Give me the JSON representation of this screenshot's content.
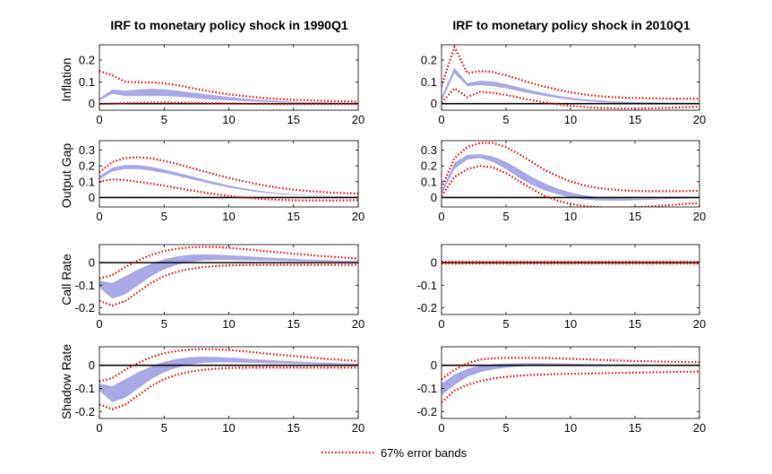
{
  "chart_data": {
    "type": "line",
    "figure": "Impulse responses to monetary policy shock",
    "legend": {
      "label": "67% error bands",
      "color": "#e00000",
      "style": "dotted",
      "placement": "bottom-center"
    },
    "band_color": "#a8a8e6",
    "columns": [
      {
        "title": "IRF to monetary policy shock in 1990Q1"
      },
      {
        "title": "IRF to monetary policy shock in 2010Q1"
      }
    ],
    "rows": [
      {
        "ylabel": "Inflation",
        "ylim": [
          -0.03,
          0.27
        ],
        "yticks": [
          0,
          0.1,
          0.2
        ],
        "ytick_labels": [
          "0",
          "0.1",
          "0.2"
        ]
      },
      {
        "ylabel": "Output Gap",
        "ylim": [
          -0.06,
          0.36
        ],
        "yticks": [
          0,
          0.1,
          0.2,
          0.3
        ],
        "ytick_labels": [
          "0",
          "0.1",
          "0.2",
          "0.3"
        ]
      },
      {
        "ylabel": "Call Rate",
        "ylim": [
          -0.23,
          0.08
        ],
        "yticks": [
          -0.2,
          -0.1,
          0
        ],
        "ytick_labels": [
          "-0.2",
          "-0.1",
          "0"
        ]
      },
      {
        "ylabel": "Shadow Rate",
        "ylim": [
          -0.23,
          0.08
        ],
        "yticks": [
          -0.2,
          -0.1,
          0
        ],
        "ytick_labels": [
          "-0.2",
          "-0.1",
          "0"
        ]
      }
    ],
    "xlim": [
      0,
      20
    ],
    "xticks": [
      0,
      5,
      10,
      15,
      20
    ],
    "xtick_labels": [
      "0",
      "5",
      "10",
      "15",
      "20"
    ],
    "x": [
      0,
      1,
      2,
      3,
      4,
      5,
      6,
      7,
      8,
      9,
      10,
      11,
      12,
      13,
      14,
      15,
      16,
      17,
      18,
      19,
      20
    ],
    "panels": [
      {
        "row": 0,
        "col": 0,
        "band_lower": [
          0.015,
          0.045,
          0.035,
          0.035,
          0.035,
          0.035,
          0.032,
          0.027,
          0.022,
          0.018,
          0.015,
          0.012,
          0.01,
          0.008,
          0.006,
          0.005,
          0.004,
          0.003,
          0.003,
          0.002,
          0.002
        ],
        "band_upper": [
          0.025,
          0.065,
          0.06,
          0.065,
          0.068,
          0.066,
          0.06,
          0.052,
          0.045,
          0.038,
          0.031,
          0.025,
          0.02,
          0.016,
          0.012,
          0.009,
          0.007,
          0.006,
          0.005,
          0.004,
          0.004
        ],
        "err_lower": [
          -0.002,
          0.0,
          0.002,
          0.004,
          0.005,
          0.005,
          0.005,
          0.004,
          0.003,
          0.002,
          0.001,
          0.0,
          -0.001,
          -0.001,
          -0.002,
          -0.002,
          -0.002,
          -0.002,
          -0.002,
          -0.002,
          -0.002
        ],
        "err_upper": [
          0.15,
          0.13,
          0.1,
          0.098,
          0.097,
          0.094,
          0.085,
          0.073,
          0.062,
          0.052,
          0.043,
          0.036,
          0.03,
          0.025,
          0.021,
          0.018,
          0.016,
          0.014,
          0.012,
          0.011,
          0.01
        ]
      },
      {
        "row": 0,
        "col": 1,
        "band_lower": [
          0.01,
          0.14,
          0.08,
          0.085,
          0.08,
          0.07,
          0.058,
          0.046,
          0.035,
          0.026,
          0.018,
          0.012,
          0.008,
          0.005,
          0.003,
          0.002,
          0.001,
          0.001,
          0.001,
          0.001,
          0.001
        ],
        "band_upper": [
          0.03,
          0.165,
          0.095,
          0.105,
          0.102,
          0.09,
          0.075,
          0.061,
          0.048,
          0.037,
          0.028,
          0.021,
          0.016,
          0.012,
          0.009,
          0.007,
          0.006,
          0.005,
          0.004,
          0.004,
          0.003
        ],
        "err_lower": [
          0.005,
          0.07,
          0.03,
          0.055,
          0.05,
          0.04,
          0.028,
          0.016,
          0.006,
          -0.003,
          -0.01,
          -0.015,
          -0.019,
          -0.021,
          -0.022,
          -0.022,
          -0.021,
          -0.02,
          -0.018,
          -0.016,
          -0.014
        ],
        "err_upper": [
          0.08,
          0.26,
          0.14,
          0.15,
          0.145,
          0.13,
          0.112,
          0.094,
          0.078,
          0.064,
          0.052,
          0.043,
          0.036,
          0.031,
          0.028,
          0.026,
          0.025,
          0.024,
          0.023,
          0.023,
          0.023
        ]
      },
      {
        "row": 1,
        "col": 0,
        "band_lower": [
          0.115,
          0.165,
          0.18,
          0.18,
          0.17,
          0.155,
          0.137,
          0.118,
          0.098,
          0.08,
          0.063,
          0.049,
          0.037,
          0.028,
          0.021,
          0.016,
          0.012,
          0.009,
          0.007,
          0.006,
          0.005
        ],
        "band_upper": [
          0.135,
          0.19,
          0.205,
          0.205,
          0.195,
          0.178,
          0.158,
          0.137,
          0.116,
          0.096,
          0.077,
          0.061,
          0.047,
          0.036,
          0.027,
          0.02,
          0.015,
          0.011,
          0.009,
          0.007,
          0.006
        ],
        "err_lower": [
          0.1,
          0.115,
          0.11,
          0.1,
          0.088,
          0.075,
          0.06,
          0.046,
          0.033,
          0.021,
          0.01,
          0.001,
          -0.006,
          -0.011,
          -0.015,
          -0.018,
          -0.019,
          -0.019,
          -0.019,
          -0.018,
          -0.017
        ],
        "err_upper": [
          0.16,
          0.225,
          0.25,
          0.255,
          0.248,
          0.232,
          0.212,
          0.19,
          0.167,
          0.145,
          0.124,
          0.105,
          0.088,
          0.073,
          0.06,
          0.05,
          0.042,
          0.036,
          0.031,
          0.028,
          0.025
        ]
      },
      {
        "row": 1,
        "col": 1,
        "band_lower": [
          0.02,
          0.18,
          0.24,
          0.25,
          0.225,
          0.18,
          0.125,
          0.08,
          0.045,
          0.02,
          0.0,
          -0.012,
          -0.018,
          -0.02,
          -0.02,
          -0.018,
          -0.015,
          -0.012,
          -0.009,
          -0.007,
          -0.005
        ],
        "band_upper": [
          0.04,
          0.22,
          0.27,
          0.275,
          0.26,
          0.225,
          0.18,
          0.13,
          0.09,
          0.057,
          0.032,
          0.015,
          0.004,
          -0.002,
          -0.005,
          -0.006,
          -0.006,
          -0.005,
          -0.004,
          -0.003,
          -0.002
        ],
        "err_lower": [
          0.01,
          0.13,
          0.18,
          0.2,
          0.19,
          0.155,
          0.105,
          0.055,
          0.01,
          -0.02,
          -0.04,
          -0.053,
          -0.06,
          -0.063,
          -0.063,
          -0.061,
          -0.057,
          -0.052,
          -0.046,
          -0.04,
          -0.034
        ],
        "err_upper": [
          0.06,
          0.25,
          0.32,
          0.345,
          0.345,
          0.32,
          0.275,
          0.225,
          0.175,
          0.135,
          0.102,
          0.078,
          0.062,
          0.052,
          0.046,
          0.042,
          0.04,
          0.04,
          0.04,
          0.041,
          0.042
        ]
      },
      {
        "row": 2,
        "col": 0,
        "band_lower": [
          -0.11,
          -0.16,
          -0.14,
          -0.1,
          -0.06,
          -0.03,
          -0.01,
          0.003,
          0.01,
          0.012,
          0.012,
          0.011,
          0.01,
          0.009,
          0.008,
          0.007,
          0.006,
          0.005,
          0.004,
          0.004,
          0.003
        ],
        "band_upper": [
          -0.08,
          -0.09,
          -0.06,
          -0.03,
          -0.005,
          0.015,
          0.028,
          0.035,
          0.037,
          0.036,
          0.033,
          0.03,
          0.026,
          0.023,
          0.02,
          0.017,
          0.014,
          0.012,
          0.01,
          0.008,
          0.007
        ],
        "err_lower": [
          -0.17,
          -0.19,
          -0.17,
          -0.13,
          -0.09,
          -0.06,
          -0.04,
          -0.028,
          -0.02,
          -0.015,
          -0.012,
          -0.011,
          -0.01,
          -0.01,
          -0.01,
          -0.01,
          -0.01,
          -0.01,
          -0.01,
          -0.01,
          -0.01
        ],
        "err_upper": [
          -0.07,
          -0.055,
          -0.02,
          0.01,
          0.035,
          0.052,
          0.062,
          0.068,
          0.07,
          0.069,
          0.066,
          0.061,
          0.056,
          0.05,
          0.045,
          0.04,
          0.035,
          0.03,
          0.026,
          0.022,
          0.018
        ]
      },
      {
        "row": 2,
        "col": 1,
        "band_lower": [
          -0.003,
          -0.003,
          -0.003,
          -0.003,
          -0.003,
          -0.003,
          -0.003,
          -0.003,
          -0.003,
          -0.003,
          -0.003,
          -0.003,
          -0.003,
          -0.003,
          -0.003,
          -0.003,
          -0.003,
          -0.003,
          -0.003,
          -0.003,
          -0.003
        ],
        "band_upper": [
          0.003,
          0.003,
          0.003,
          0.003,
          0.003,
          0.003,
          0.003,
          0.003,
          0.003,
          0.003,
          0.003,
          0.003,
          0.003,
          0.003,
          0.003,
          0.003,
          0.003,
          0.003,
          0.003,
          0.003,
          0.003
        ],
        "err_lower": [
          -0.004,
          -0.004,
          -0.004,
          -0.004,
          -0.004,
          -0.004,
          -0.004,
          -0.004,
          -0.004,
          -0.004,
          -0.004,
          -0.004,
          -0.004,
          -0.004,
          -0.004,
          -0.004,
          -0.004,
          -0.004,
          -0.004,
          -0.004,
          -0.004
        ],
        "err_upper": [
          0.004,
          0.004,
          0.004,
          0.004,
          0.004,
          0.004,
          0.004,
          0.004,
          0.004,
          0.004,
          0.004,
          0.004,
          0.004,
          0.004,
          0.004,
          0.004,
          0.004,
          0.004,
          0.004,
          0.004,
          0.004
        ]
      },
      {
        "row": 3,
        "col": 0,
        "band_lower": [
          -0.11,
          -0.16,
          -0.14,
          -0.1,
          -0.06,
          -0.03,
          -0.01,
          0.003,
          0.01,
          0.012,
          0.012,
          0.011,
          0.01,
          0.009,
          0.008,
          0.007,
          0.006,
          0.005,
          0.004,
          0.004,
          0.003
        ],
        "band_upper": [
          -0.08,
          -0.09,
          -0.06,
          -0.03,
          -0.005,
          0.015,
          0.028,
          0.035,
          0.037,
          0.036,
          0.033,
          0.03,
          0.026,
          0.023,
          0.02,
          0.017,
          0.014,
          0.012,
          0.01,
          0.008,
          0.007
        ],
        "err_lower": [
          -0.17,
          -0.19,
          -0.17,
          -0.13,
          -0.09,
          -0.06,
          -0.04,
          -0.028,
          -0.02,
          -0.015,
          -0.012,
          -0.011,
          -0.01,
          -0.01,
          -0.01,
          -0.01,
          -0.01,
          -0.01,
          -0.01,
          -0.01,
          -0.01
        ],
        "err_upper": [
          -0.07,
          -0.055,
          -0.02,
          0.01,
          0.035,
          0.052,
          0.062,
          0.068,
          0.07,
          0.069,
          0.066,
          0.061,
          0.056,
          0.05,
          0.045,
          0.04,
          0.035,
          0.03,
          0.026,
          0.022,
          0.018
        ]
      },
      {
        "row": 3,
        "col": 1,
        "band_lower": [
          -0.13,
          -0.085,
          -0.05,
          -0.03,
          -0.018,
          -0.01,
          -0.005,
          -0.002,
          0.0,
          0.001,
          0.001,
          0.001,
          0.001,
          0.001,
          0.001,
          0.001,
          0.001,
          0.001,
          0.001,
          0.0,
          0.0
        ],
        "band_upper": [
          -0.08,
          -0.04,
          -0.015,
          -0.002,
          0.005,
          0.008,
          0.009,
          0.009,
          0.009,
          0.008,
          0.007,
          0.006,
          0.005,
          0.004,
          0.004,
          0.003,
          0.003,
          0.002,
          0.002,
          0.002,
          0.002
        ],
        "err_lower": [
          -0.16,
          -0.11,
          -0.085,
          -0.068,
          -0.057,
          -0.05,
          -0.045,
          -0.042,
          -0.04,
          -0.038,
          -0.037,
          -0.036,
          -0.035,
          -0.034,
          -0.033,
          -0.032,
          -0.031,
          -0.03,
          -0.029,
          -0.028,
          -0.027
        ],
        "err_upper": [
          -0.06,
          -0.02,
          0.008,
          0.025,
          0.03,
          0.032,
          0.032,
          0.032,
          0.031,
          0.03,
          0.028,
          0.026,
          0.024,
          0.022,
          0.02,
          0.018,
          0.017,
          0.016,
          0.015,
          0.014,
          0.013
        ]
      }
    ]
  }
}
